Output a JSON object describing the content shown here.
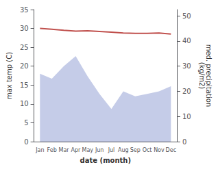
{
  "chart_data": {
    "type": "line",
    "categories": [
      "Jan",
      "Feb",
      "Mar",
      "Apr",
      "May",
      "Jun",
      "Jul",
      "Aug",
      "Sep",
      "Oct",
      "Nov",
      "Dec"
    ],
    "series": [
      {
        "type": "area",
        "axis": "y2",
        "color": "#c5cce8",
        "values": [
          27,
          25,
          30,
          34,
          26,
          19,
          13,
          20,
          18,
          19,
          20,
          22
        ]
      },
      {
        "type": "line",
        "color": "#c0504d",
        "values": [
          30.0,
          29.8,
          29.5,
          29.3,
          29.4,
          29.2,
          29.0,
          28.8,
          28.7,
          28.7,
          28.8,
          28.5
        ]
      }
    ],
    "xlabel": "date (month)",
    "ylabel": "max temp (C)",
    "y2label": "med. precipitation\n(kg/m2)",
    "ylim": [
      0,
      35
    ],
    "yticks": [
      0,
      5,
      10,
      15,
      20,
      25,
      30,
      35
    ],
    "y2lim": [
      0,
      52.5
    ],
    "y2ticks": [
      0,
      10,
      20,
      30,
      40,
      50
    ],
    "grid": false
  }
}
